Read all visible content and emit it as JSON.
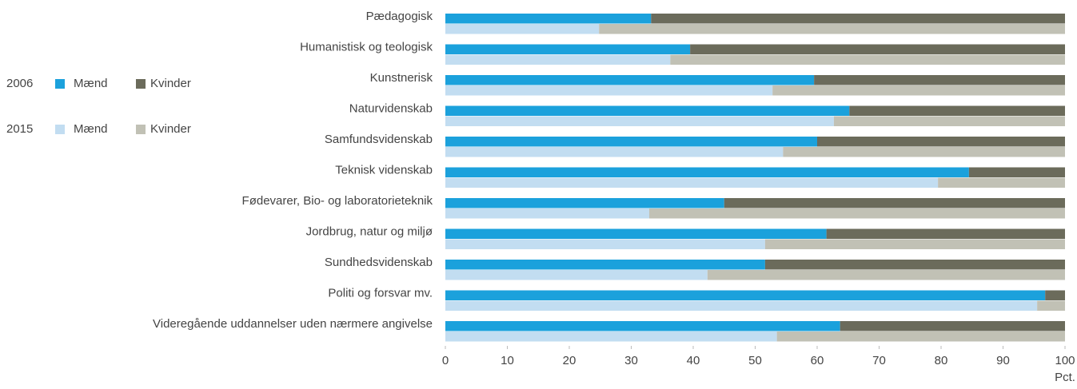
{
  "chart_data": {
    "type": "bar",
    "orientation": "horizontal",
    "stacked": true,
    "categories": [
      "Pædagogisk",
      "Humanistisk og teologisk",
      "Kunstnerisk",
      "Naturvidenskab",
      "Samfundsvidenskab",
      "Teknisk videnskab",
      "Fødevarer, Bio- og laboratorieteknik",
      "Jordbrug, natur og miljø",
      "Sundhedsvidenskab",
      "Politi og forsvar mv.",
      "Videregående uddannelser uden nærmere angivelse"
    ],
    "groups": [
      {
        "name": "2006",
        "series": [
          {
            "name": "Mænd",
            "color": "#1ba1dc",
            "values": [
              33.2,
              39.5,
              59.5,
              65.2,
              60.0,
              84.5,
              45.0,
              61.5,
              51.6,
              96.8,
              63.7
            ]
          },
          {
            "name": "Kvinder",
            "color": "#6b6b5b",
            "values": [
              66.8,
              60.5,
              40.5,
              34.8,
              40.0,
              15.5,
              55.0,
              38.5,
              48.4,
              3.2,
              36.3
            ]
          }
        ]
      },
      {
        "name": "2015",
        "series": [
          {
            "name": "Mænd",
            "color": "#c2ddf1",
            "values": [
              24.8,
              36.3,
              52.8,
              62.7,
              54.5,
              79.5,
              32.9,
              51.6,
              42.3,
              95.5,
              53.5
            ]
          },
          {
            "name": "Kvinder",
            "color": "#c1c1b5",
            "values": [
              75.2,
              63.7,
              47.2,
              37.3,
              45.5,
              20.5,
              67.1,
              48.4,
              57.7,
              4.5,
              46.5
            ]
          }
        ]
      }
    ],
    "xlabel": "Pct.",
    "xlim": [
      0,
      100
    ],
    "xticks": [
      0,
      10,
      20,
      30,
      40,
      50,
      60,
      70,
      80,
      90,
      100
    ],
    "grid": false
  }
}
